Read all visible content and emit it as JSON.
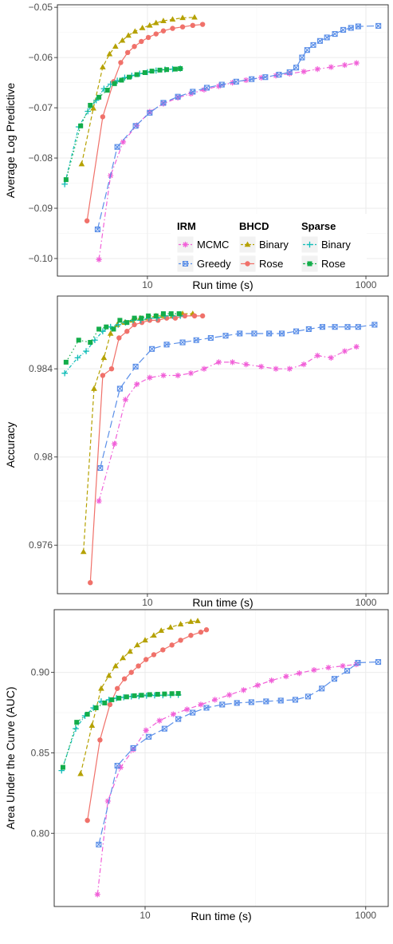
{
  "colors": {
    "mcmc": "#f160d8",
    "greedy": "#5b8fe8",
    "bhcd_binary": "#b5a100",
    "bhcd_rose": "#f0716a",
    "sparse_binary": "#11bdb8",
    "sparse_rose": "#13ad4a",
    "grid": "#ebebeb",
    "frame": "#222222"
  },
  "legend": {
    "groups": [
      {
        "title": "IRM",
        "items": [
          {
            "label": "MCMC",
            "series": "mcmc"
          },
          {
            "label": "Greedy",
            "series": "greedy"
          }
        ]
      },
      {
        "title": "BHCD",
        "items": [
          {
            "label": "Binary",
            "series": "bhcd_binary"
          },
          {
            "label": "Rose",
            "series": "bhcd_rose"
          }
        ]
      },
      {
        "title": "Sparse",
        "items": [
          {
            "label": "Binary",
            "series": "sparse_binary"
          },
          {
            "label": "Rose",
            "series": "sparse_rose"
          }
        ]
      }
    ]
  },
  "chart_data": [
    {
      "type": "line",
      "xlabel": "Run time (s)",
      "ylabel": "Average Log Predictive",
      "xscale": "log10",
      "xlim": [
        1.5,
        1600
      ],
      "ylim": [
        -0.1035,
        -0.0495
      ],
      "xticks": [
        10,
        1000
      ],
      "xtick_labels": [
        "10",
        "1000"
      ],
      "yticks": [
        -0.1,
        -0.09,
        -0.08,
        -0.07,
        -0.06,
        -0.05
      ],
      "ytick_labels": [
        "−0.10",
        "−0.09",
        "−0.08",
        "−0.07",
        "−0.06",
        "−0.05"
      ],
      "grid": true,
      "legend_position": "bottom-right inside",
      "series": [
        {
          "key": "mcmc",
          "x": [
            3.6,
            4.6,
            6.0,
            8.0,
            10.5,
            14,
            19,
            25,
            33,
            45,
            60,
            80,
            110,
            150,
            200,
            270,
            360,
            480,
            640,
            820
          ],
          "y": [
            -0.1002,
            -0.0835,
            -0.0768,
            -0.0735,
            -0.0708,
            -0.0692,
            -0.068,
            -0.0672,
            -0.0664,
            -0.0657,
            -0.065,
            -0.0645,
            -0.064,
            -0.0636,
            -0.0632,
            -0.0628,
            -0.0623,
            -0.0619,
            -0.0615,
            -0.0611
          ]
        },
        {
          "key": "greedy",
          "x": [
            3.5,
            5.3,
            7.8,
            10.5,
            14,
            19,
            26,
            35,
            48,
            65,
            90,
            120,
            160,
            200,
            230,
            260,
            290,
            330,
            380,
            440,
            520,
            620,
            730,
            850,
            1300
          ],
          "y": [
            -0.0942,
            -0.0778,
            -0.0736,
            -0.071,
            -0.069,
            -0.0678,
            -0.0668,
            -0.066,
            -0.0654,
            -0.0648,
            -0.0643,
            -0.0639,
            -0.0634,
            -0.0629,
            -0.062,
            -0.06,
            -0.0585,
            -0.0575,
            -0.0567,
            -0.056,
            -0.0553,
            -0.0545,
            -0.0541,
            -0.0538,
            -0.0537
          ]
        },
        {
          "key": "bhcd_binary",
          "x": [
            2.5,
            3.2,
            3.9,
            4.5,
            5.1,
            5.9,
            6.7,
            7.7,
            9.0,
            10.5,
            12,
            14,
            17,
            21,
            27
          ],
          "y": [
            -0.0812,
            -0.0701,
            -0.0619,
            -0.0593,
            -0.0578,
            -0.0566,
            -0.0556,
            -0.0548,
            -0.0541,
            -0.0536,
            -0.0531,
            -0.0527,
            -0.0524,
            -0.0521,
            -0.052
          ]
        },
        {
          "key": "bhcd_rose",
          "x": [
            2.8,
            3.9,
            4.9,
            5.7,
            6.6,
            7.6,
            8.8,
            10.2,
            12,
            14,
            17,
            21,
            26,
            32
          ],
          "y": [
            -0.0925,
            -0.0718,
            -0.0648,
            -0.061,
            -0.059,
            -0.0578,
            -0.0568,
            -0.056,
            -0.0553,
            -0.0547,
            -0.0542,
            -0.0539,
            -0.0536,
            -0.0534
          ]
        },
        {
          "key": "sparse_binary",
          "x": [
            1.75,
            2.35,
            2.85,
            3.4,
            4.0,
            4.6,
            5.3,
            6.2,
            7.2,
            8.5,
            10,
            12,
            14.5,
            17,
            20
          ],
          "y": [
            -0.0852,
            -0.0738,
            -0.0707,
            -0.0685,
            -0.0662,
            -0.0653,
            -0.0646,
            -0.064,
            -0.0636,
            -0.0632,
            -0.0629,
            -0.0626,
            -0.0624,
            -0.0623,
            -0.0622
          ]
        },
        {
          "key": "sparse_rose",
          "x": [
            1.8,
            2.45,
            3.0,
            3.6,
            4.3,
            5.0,
            5.8,
            6.8,
            8.0,
            9.5,
            11,
            13,
            15,
            18,
            20
          ],
          "y": [
            -0.0843,
            -0.0736,
            -0.0695,
            -0.0679,
            -0.0665,
            -0.0652,
            -0.0645,
            -0.0639,
            -0.0634,
            -0.063,
            -0.0627,
            -0.0625,
            -0.0624,
            -0.0623,
            -0.0622
          ]
        }
      ]
    },
    {
      "type": "line",
      "xlabel": "Run time (s)",
      "ylabel": "Accuracy",
      "xscale": "log10",
      "xlim": [
        1.5,
        1600
      ],
      "ylim": [
        0.9738,
        0.9873
      ],
      "xticks": [
        10,
        1000
      ],
      "xtick_labels": [
        "10",
        "1000"
      ],
      "yticks": [
        0.976,
        0.98,
        0.984
      ],
      "ytick_labels": [
        "0.976",
        "0.98",
        "0.984"
      ],
      "grid": true,
      "series": [
        {
          "key": "mcmc",
          "x": [
            3.6,
            5.0,
            6.3,
            8.0,
            10.5,
            14,
            19,
            25,
            33,
            45,
            60,
            80,
            110,
            150,
            200,
            270,
            360,
            480,
            640,
            820
          ],
          "y": [
            0.978,
            0.9806,
            0.9826,
            0.9833,
            0.9836,
            0.9837,
            0.9837,
            0.9838,
            0.984,
            0.9843,
            0.9843,
            0.9842,
            0.9841,
            0.984,
            0.984,
            0.9842,
            0.9846,
            0.9845,
            0.9848,
            0.985
          ]
        },
        {
          "key": "greedy",
          "x": [
            3.7,
            5.6,
            7.8,
            11,
            15,
            21,
            28,
            38,
            52,
            70,
            95,
            130,
            170,
            230,
            300,
            400,
            520,
            680,
            850,
            1200
          ],
          "y": [
            0.9795,
            0.9831,
            0.9841,
            0.9849,
            0.9851,
            0.9852,
            0.9853,
            0.9854,
            0.9855,
            0.9856,
            0.9856,
            0.9856,
            0.9856,
            0.9857,
            0.9858,
            0.9859,
            0.9859,
            0.9859,
            0.9859,
            0.986
          ]
        },
        {
          "key": "bhcd_binary",
          "x": [
            2.6,
            3.25,
            4.0,
            4.6,
            5.3,
            6.2,
            7.3,
            8.6,
            10,
            12,
            14,
            17,
            21,
            26
          ],
          "y": [
            0.9757,
            0.9831,
            0.9845,
            0.9856,
            0.986,
            0.9861,
            0.9862,
            0.9863,
            0.9863,
            0.9864,
            0.9864,
            0.9864,
            0.9865,
            0.9865
          ]
        },
        {
          "key": "bhcd_rose",
          "x": [
            3.0,
            3.9,
            4.7,
            5.5,
            6.5,
            7.6,
            8.9,
            10.5,
            12.5,
            15,
            18,
            22,
            27,
            32
          ],
          "y": [
            0.9743,
            0.9837,
            0.984,
            0.9854,
            0.9857,
            0.986,
            0.9861,
            0.9862,
            0.9862,
            0.9863,
            0.9863,
            0.9864,
            0.9864,
            0.9864
          ]
        },
        {
          "key": "sparse_binary",
          "x": [
            1.75,
            2.3,
            2.75,
            3.3,
            3.9,
            4.6,
            5.4,
            6.3,
            7.4,
            8.7,
            10.3,
            12.2,
            14.5,
            17,
            20
          ],
          "y": [
            0.9838,
            0.9845,
            0.9848,
            0.9853,
            0.9857,
            0.9859,
            0.986,
            0.9861,
            0.9862,
            0.9862,
            0.9863,
            0.9863,
            0.9864,
            0.9864,
            0.9864
          ]
        },
        {
          "key": "sparse_rose",
          "x": [
            1.8,
            2.35,
            3.0,
            3.6,
            4.2,
            4.9,
            5.6,
            6.5,
            7.6,
            8.8,
            10.2,
            12,
            14,
            16.5,
            19.5
          ],
          "y": [
            0.9843,
            0.9853,
            0.9852,
            0.9858,
            0.9859,
            0.9858,
            0.9862,
            0.9861,
            0.9863,
            0.9863,
            0.9864,
            0.9864,
            0.9865,
            0.9865,
            0.9865
          ]
        }
      ]
    },
    {
      "type": "line",
      "xlabel": "Run time (s)",
      "ylabel": "Area Under the Curve (AUC)",
      "xscale": "log10",
      "xlim": [
        1.5,
        1600
      ],
      "ylim": [
        0.7545,
        0.939
      ],
      "xticks": [
        10,
        1000
      ],
      "xtick_labels": [
        "10",
        "1000"
      ],
      "yticks": [
        0.8,
        0.85,
        0.9
      ],
      "ytick_labels": [
        "0.80",
        "0.85",
        "0.90"
      ],
      "grid": true,
      "series": [
        {
          "key": "mcmc",
          "x": [
            3.7,
            4.6,
            6.0,
            7.8,
            10.2,
            13.5,
            18,
            24,
            32,
            43,
            58,
            78,
            105,
            140,
            190,
            250,
            340,
            460,
            620,
            820
          ],
          "y": [
            0.762,
            0.82,
            0.841,
            0.852,
            0.864,
            0.87,
            0.874,
            0.877,
            0.88,
            0.883,
            0.886,
            0.889,
            0.892,
            0.895,
            0.8975,
            0.8995,
            0.9015,
            0.903,
            0.904,
            0.905
          ]
        },
        {
          "key": "greedy",
          "x": [
            3.8,
            5.6,
            7.8,
            10.8,
            15,
            20,
            27,
            36,
            50,
            68,
            92,
            125,
            170,
            230,
            300,
            400,
            520,
            680,
            850,
            1300
          ],
          "y": [
            0.793,
            0.842,
            0.853,
            0.86,
            0.865,
            0.871,
            0.875,
            0.878,
            0.88,
            0.881,
            0.8815,
            0.882,
            0.8825,
            0.883,
            0.885,
            0.89,
            0.896,
            0.901,
            0.906,
            0.9065
          ]
        },
        {
          "key": "bhcd_binary",
          "x": [
            2.6,
            3.3,
            4.0,
            4.7,
            5.4,
            6.3,
            7.3,
            8.5,
            10,
            12,
            14,
            17,
            21,
            26,
            30
          ],
          "y": [
            0.837,
            0.867,
            0.89,
            0.898,
            0.904,
            0.909,
            0.913,
            0.917,
            0.92,
            0.923,
            0.926,
            0.928,
            0.93,
            0.9315,
            0.932
          ]
        },
        {
          "key": "bhcd_rose",
          "x": [
            3.0,
            3.9,
            4.8,
            5.6,
            6.5,
            7.5,
            8.7,
            10.2,
            12,
            14.5,
            17.5,
            21,
            26,
            32,
            36
          ],
          "y": [
            0.808,
            0.858,
            0.88,
            0.89,
            0.896,
            0.9,
            0.904,
            0.908,
            0.911,
            0.914,
            0.917,
            0.92,
            0.923,
            0.925,
            0.9265
          ]
        },
        {
          "key": "sparse_binary",
          "x": [
            1.75,
            2.35,
            2.85,
            3.4,
            4.0,
            4.7,
            5.5,
            6.4,
            7.5,
            8.8,
            10.3,
            12.2,
            14.5,
            17,
            20
          ],
          "y": [
            0.839,
            0.865,
            0.873,
            0.878,
            0.882,
            0.883,
            0.884,
            0.8845,
            0.885,
            0.8852,
            0.8855,
            0.8857,
            0.8858,
            0.8859,
            0.886
          ]
        },
        {
          "key": "sparse_rose",
          "x": [
            1.8,
            2.4,
            3.0,
            3.6,
            4.3,
            5.0,
            5.8,
            6.8,
            8.0,
            9.3,
            11,
            13,
            15,
            17.5,
            20
          ],
          "y": [
            0.841,
            0.869,
            0.874,
            0.878,
            0.881,
            0.883,
            0.884,
            0.8848,
            0.8855,
            0.8858,
            0.8862,
            0.8864,
            0.8866,
            0.8868,
            0.8869
          ]
        }
      ]
    }
  ]
}
